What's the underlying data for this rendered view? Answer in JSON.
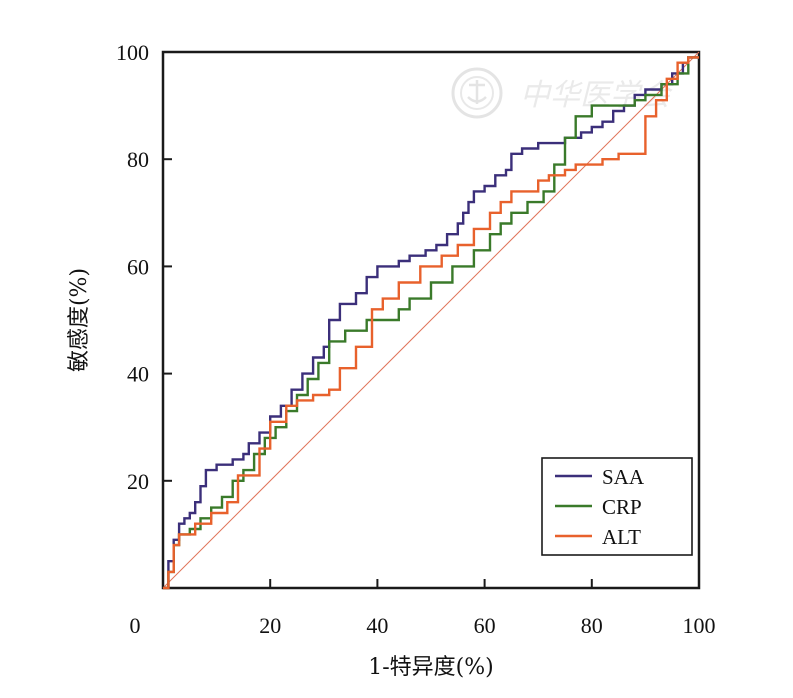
{
  "chart_data": {
    "type": "line",
    "xlabel": "1-特异度(%)",
    "ylabel": "敏感度(%)",
    "xlim": [
      0,
      100
    ],
    "ylim": [
      0,
      100
    ],
    "x_ticks": [
      "0",
      "20",
      "40",
      "60",
      "80",
      "100"
    ],
    "y_ticks": [
      "20",
      "40",
      "60",
      "80",
      "100"
    ],
    "grid": false,
    "legend_position": "bottom-right",
    "reference_line": {
      "from": [
        0,
        0
      ],
      "to": [
        100,
        100
      ],
      "color": "#e0735a"
    },
    "watermark": "中华医学会",
    "series": [
      {
        "name": "SAA",
        "color": "#3b2f7a",
        "x": [
          0,
          1,
          1,
          2,
          2,
          3,
          3,
          4,
          4,
          5,
          5,
          6,
          6,
          7,
          7,
          8,
          8,
          10,
          10,
          13,
          13,
          15,
          15,
          16,
          16,
          18,
          18,
          20,
          20,
          22,
          22,
          24,
          24,
          26,
          26,
          28,
          28,
          30,
          30,
          31,
          31,
          33,
          33,
          36,
          36,
          38,
          38,
          40,
          40,
          44,
          44,
          46,
          46,
          49,
          49,
          51,
          51,
          53,
          53,
          55,
          55,
          56,
          56,
          57,
          57,
          58,
          58,
          60,
          60,
          62,
          62,
          64,
          64,
          65,
          65,
          67,
          67,
          70,
          70,
          75,
          75,
          78,
          78,
          80,
          80,
          82,
          82,
          84,
          84,
          86,
          86,
          88,
          88,
          90,
          90,
          93,
          93,
          95,
          95,
          97,
          97,
          98,
          98,
          100
        ],
        "y": [
          0,
          0,
          5,
          5,
          9,
          9,
          12,
          12,
          13,
          13,
          14,
          14,
          16,
          16,
          19,
          19,
          22,
          22,
          23,
          23,
          24,
          24,
          25,
          25,
          27,
          27,
          29,
          29,
          32,
          32,
          34,
          34,
          37,
          37,
          40,
          40,
          43,
          43,
          45,
          45,
          50,
          50,
          53,
          53,
          55,
          55,
          58,
          58,
          60,
          60,
          61,
          61,
          62,
          62,
          63,
          63,
          64,
          64,
          66,
          66,
          68,
          68,
          70,
          70,
          72,
          72,
          74,
          74,
          75,
          75,
          77,
          77,
          78,
          78,
          81,
          81,
          82,
          82,
          83,
          83,
          84,
          84,
          85,
          85,
          86,
          86,
          87,
          87,
          89,
          89,
          90,
          90,
          92,
          92,
          93,
          93,
          94,
          94,
          96,
          96,
          98,
          98,
          99,
          99
        ]
      },
      {
        "name": "CRP",
        "color": "#3a7a2a",
        "x": [
          0,
          1,
          1,
          2,
          2,
          3,
          3,
          5,
          5,
          7,
          7,
          9,
          9,
          11,
          11,
          13,
          13,
          15,
          15,
          17,
          17,
          19,
          19,
          21,
          21,
          23,
          23,
          25,
          25,
          27,
          27,
          29,
          29,
          31,
          31,
          34,
          34,
          38,
          38,
          44,
          44,
          46,
          46,
          50,
          50,
          54,
          54,
          58,
          58,
          61,
          61,
          63,
          63,
          65,
          65,
          68,
          68,
          71,
          71,
          73,
          73,
          75,
          75,
          77,
          77,
          80,
          80,
          88,
          88,
          90,
          90,
          93,
          93,
          96,
          96,
          98,
          98,
          100
        ],
        "y": [
          0,
          0,
          3,
          3,
          8,
          8,
          10,
          10,
          11,
          11,
          13,
          13,
          15,
          15,
          17,
          17,
          20,
          20,
          22,
          22,
          25,
          25,
          28,
          28,
          30,
          30,
          33,
          33,
          36,
          36,
          39,
          39,
          42,
          42,
          46,
          46,
          48,
          48,
          50,
          50,
          52,
          52,
          54,
          54,
          57,
          57,
          60,
          60,
          63,
          63,
          66,
          66,
          68,
          68,
          70,
          70,
          72,
          72,
          74,
          74,
          79,
          79,
          84,
          84,
          88,
          88,
          90,
          90,
          91,
          91,
          92,
          92,
          94,
          94,
          96,
          96,
          99,
          99
        ]
      },
      {
        "name": "ALT",
        "color": "#e8612c",
        "x": [
          0,
          1,
          1,
          2,
          2,
          3,
          3,
          6,
          6,
          9,
          9,
          12,
          12,
          14,
          14,
          18,
          18,
          20,
          20,
          23,
          23,
          25,
          25,
          28,
          28,
          31,
          31,
          33,
          33,
          36,
          36,
          39,
          39,
          41,
          41,
          44,
          44,
          48,
          48,
          52,
          52,
          55,
          55,
          58,
          58,
          61,
          61,
          63,
          63,
          65,
          65,
          70,
          70,
          72,
          72,
          75,
          75,
          77,
          77,
          82,
          82,
          85,
          85,
          90,
          90,
          92,
          92,
          94,
          94,
          96,
          96,
          98,
          98,
          100
        ],
        "y": [
          0,
          0,
          3,
          3,
          8,
          8,
          10,
          10,
          12,
          12,
          14,
          14,
          16,
          16,
          21,
          21,
          26,
          26,
          31,
          31,
          34,
          34,
          35,
          35,
          36,
          36,
          37,
          37,
          41,
          41,
          45,
          45,
          52,
          52,
          54,
          54,
          57,
          57,
          60,
          60,
          62,
          62,
          64,
          64,
          67,
          67,
          70,
          70,
          72,
          72,
          74,
          74,
          76,
          76,
          77,
          77,
          78,
          78,
          79,
          79,
          80,
          80,
          81,
          81,
          88,
          88,
          91,
          91,
          95,
          95,
          98,
          98,
          99,
          99
        ]
      }
    ]
  }
}
